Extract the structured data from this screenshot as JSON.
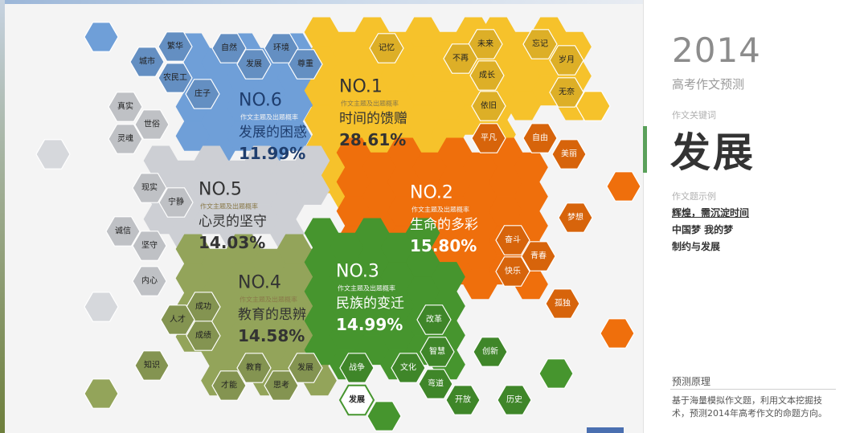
{
  "panel": {
    "year": "2014",
    "subtitle": "高考作文预测",
    "keyword_label": "作文关键词",
    "keyword": "发展",
    "examples_label": "作文题示例",
    "examples": [
      "辉煌，需沉淀时间",
      "中国梦 我的梦",
      "制约与发展"
    ],
    "principle_title": "预测原理",
    "principle_text": "基于海量模拟作文题，利用文本挖掘技术，预测2014年高考作文的命题方向。"
  },
  "colors": {
    "no1": "#f6c22b",
    "no2": "#ef6f0c",
    "no3": "#46952e",
    "no4": "#93a45a",
    "no5": "#cdcfd4",
    "no6": "#6f9fd8"
  },
  "topics": [
    {
      "id": "no1",
      "rank": "NO.1",
      "sub": "作文主题及出题概率",
      "name": "时间的馈赠",
      "pct": "28.61",
      "probability": 28.61,
      "keywords": [
        "记忆",
        "未来",
        "不再",
        "成长",
        "依旧",
        "忘记",
        "岁月",
        "无奈"
      ]
    },
    {
      "id": "no2",
      "rank": "NO.2",
      "sub": "作文主题及出题概率",
      "name": "生命的多彩",
      "pct": "15.80",
      "probability": 15.8,
      "keywords": [
        "平凡",
        "自由",
        "美丽",
        "梦想",
        "奋斗",
        "青春",
        "快乐",
        "孤独"
      ]
    },
    {
      "id": "no3",
      "rank": "NO.3",
      "sub": "作文主题及出题概率",
      "name": "民族的变迁",
      "pct": "14.99",
      "probability": 14.99,
      "keywords": [
        "改革",
        "智慧",
        "创新",
        "战争",
        "文化",
        "弯道",
        "开放",
        "历史",
        "发展"
      ]
    },
    {
      "id": "no4",
      "rank": "NO.4",
      "sub": "作文主题及出题概率",
      "name": "教育的思辨",
      "pct": "14.58",
      "probability": 14.58,
      "keywords": [
        "成功",
        "人才",
        "成绩",
        "知识",
        "教育",
        "发展",
        "才能",
        "思考"
      ]
    },
    {
      "id": "no5",
      "rank": "NO.5",
      "sub": "作文主题及出题概率",
      "name": "心灵的坚守",
      "pct": "14.03",
      "probability": 14.03,
      "keywords": [
        "真实",
        "世俗",
        "灵魂",
        "现实",
        "宁静",
        "诚信",
        "坚守",
        "内心"
      ]
    },
    {
      "id": "no6",
      "rank": "NO.6",
      "sub": "作文主题及出题概率",
      "name": "发展的困惑",
      "pct": "11.99",
      "probability": 11.99,
      "keywords": [
        "繁华",
        "城市",
        "农民工",
        "庄子",
        "自然",
        "发展",
        "环境",
        "尊重"
      ]
    }
  ],
  "pct_suffix": "%"
}
